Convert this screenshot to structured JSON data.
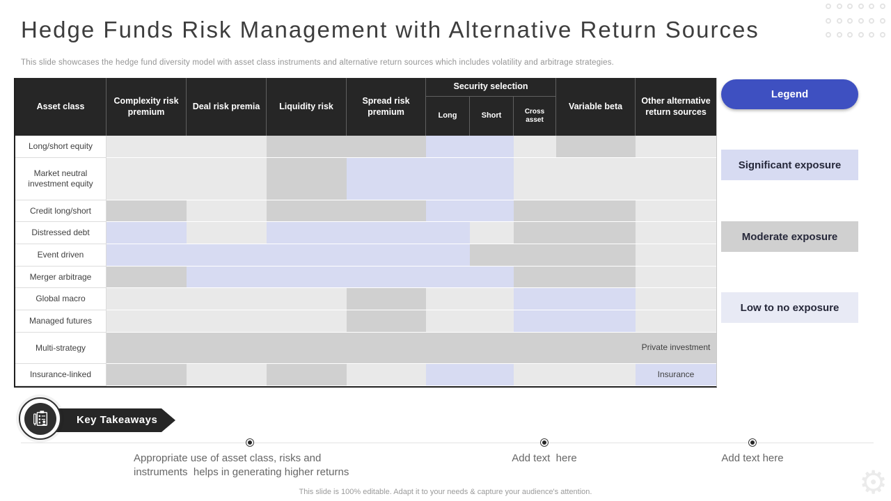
{
  "slide": {
    "title": "Hedge Funds Risk Management with Alternative Return Sources",
    "subtitle": "This slide showcases the hedge fund diversity model with asset class instruments and alternative return sources which includes volatility and arbitrage strategies.",
    "footer": "This slide is 100% editable. Adapt it to your needs & capture your audience's attention."
  },
  "colors": {
    "accent_blue": "#3e50c1",
    "header_bg": "#262626",
    "significant": "#d7dbf2",
    "moderate": "#d0d0d0",
    "low": "#e9e9e9",
    "legend_low": "#e8eaf5"
  },
  "table": {
    "header": {
      "asset_class": "Asset class",
      "complexity": "Complexity risk premium",
      "deal": "Deal risk premia",
      "liquidity": "Liquidity risk",
      "spread": "Spread risk premium",
      "security_selection": "Security selection",
      "long": "Long",
      "short": "Short",
      "cross_asset": "Cross asset",
      "variable_beta": "Variable beta",
      "other": "Other alternative return sources"
    },
    "exposure_levels": [
      "significant",
      "moderate",
      "low"
    ],
    "rows": [
      {
        "label": "Long/short equity",
        "cells": [
          "low",
          "low",
          "moderate",
          "moderate",
          "significant",
          "significant",
          "low",
          "moderate",
          "low"
        ],
        "other_text": ""
      },
      {
        "label": "Market neutral investment equity",
        "cells": [
          "low",
          "low",
          "moderate",
          "significant",
          "significant",
          "significant",
          "low",
          "low",
          "low"
        ],
        "other_text": ""
      },
      {
        "label": "Credit long/short",
        "cells": [
          "moderate",
          "low",
          "moderate",
          "moderate",
          "significant",
          "significant",
          "moderate",
          "moderate",
          "low"
        ],
        "other_text": ""
      },
      {
        "label": "Distressed debt",
        "cells": [
          "significant",
          "low",
          "significant",
          "significant",
          "significant",
          "low",
          "moderate",
          "moderate",
          "low"
        ],
        "other_text": ""
      },
      {
        "label": "Event driven",
        "cells": [
          "significant",
          "significant",
          "significant",
          "significant",
          "significant",
          "moderate",
          "moderate",
          "moderate",
          "low"
        ],
        "other_text": ""
      },
      {
        "label": "Merger arbitrage",
        "cells": [
          "moderate",
          "significant",
          "significant",
          "significant",
          "significant",
          "significant",
          "moderate",
          "moderate",
          "low"
        ],
        "other_text": ""
      },
      {
        "label": "Global macro",
        "cells": [
          "low",
          "low",
          "low",
          "moderate",
          "low",
          "low",
          "significant",
          "significant",
          "low"
        ],
        "other_text": ""
      },
      {
        "label": "Managed futures",
        "cells": [
          "low",
          "low",
          "low",
          "moderate",
          "low",
          "low",
          "significant",
          "significant",
          "low"
        ],
        "other_text": ""
      },
      {
        "label": "Multi-strategy",
        "cells": [
          "moderate",
          "moderate",
          "moderate",
          "moderate",
          "moderate",
          "moderate",
          "moderate",
          "moderate",
          "moderate"
        ],
        "other_text": "Private investment"
      },
      {
        "label": "Insurance-linked",
        "cells": [
          "moderate",
          "low",
          "moderate",
          "low",
          "significant",
          "significant",
          "low",
          "low",
          "significant"
        ],
        "other_text": "Insurance"
      }
    ]
  },
  "legend": {
    "button_label": "Legend",
    "items": [
      {
        "label": "Significant exposure",
        "level": "significant"
      },
      {
        "label": "Moderate exposure",
        "level": "moderate"
      },
      {
        "label": "Low to no exposure",
        "level": "low"
      }
    ]
  },
  "key_takeaways": {
    "heading": "Key Takeaways",
    "icon": "clipboard-checklist-icon",
    "bullets": [
      "Appropriate use of asset class, risks and instruments  helps in generating higher returns",
      "Add text  here",
      "Add text here"
    ]
  }
}
